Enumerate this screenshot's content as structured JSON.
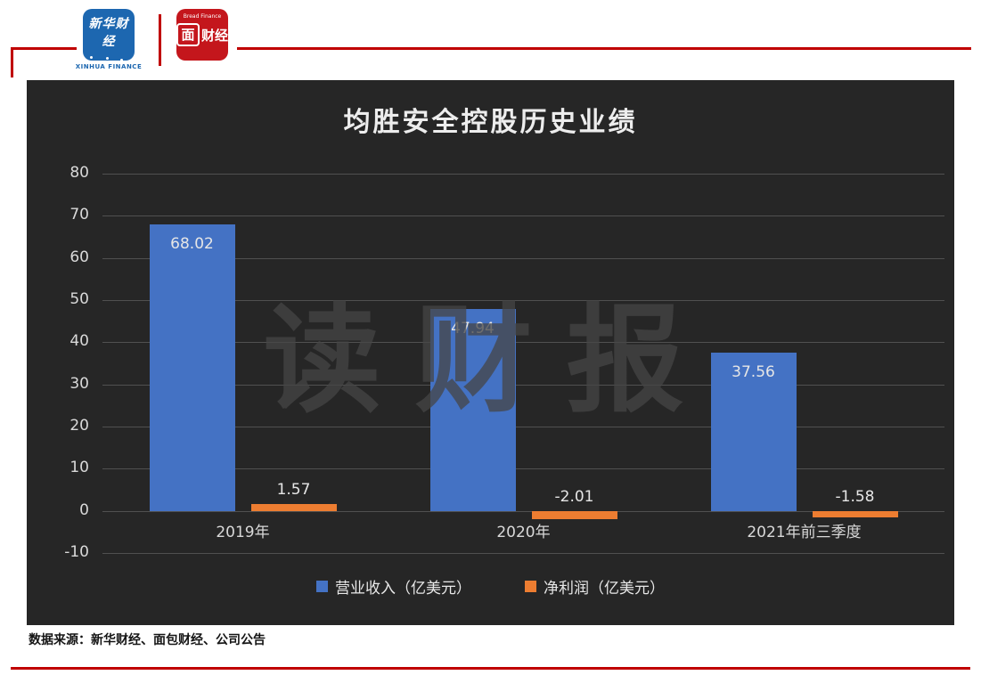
{
  "header": {
    "xinhua_logo": {
      "text": "新华财经",
      "caption": "XINHUA FINANCE"
    },
    "bread_logo": {
      "small": "Bread Finance",
      "box_char": "面",
      "text": "财经"
    }
  },
  "footer": {
    "source_note": "数据来源：新华财经、面包财经、公司公告"
  },
  "colors": {
    "accent_red": "#C00000",
    "chart_bg": "#262626",
    "revenue_blue": "#4472C4",
    "profit_orange": "#ED7D31",
    "grid": "#505050",
    "axis_text": "#D9D9D9"
  },
  "chart_data": {
    "type": "bar",
    "title": "均胜安全控股历史业绩",
    "categories": [
      "2019年",
      "2020年",
      "2021年前三季度"
    ],
    "series": [
      {
        "name": "营业收入（亿美元）",
        "color_key": "revenue_blue",
        "values": [
          68.02,
          47.94,
          37.56
        ]
      },
      {
        "name": "净利润（亿美元）",
        "color_key": "profit_orange",
        "values": [
          1.57,
          -2.01,
          -1.58
        ]
      }
    ],
    "ylim": [
      -10,
      80
    ],
    "ytick_step": 10,
    "grid": true,
    "legend_position": "bottom",
    "watermark": "读财报"
  }
}
